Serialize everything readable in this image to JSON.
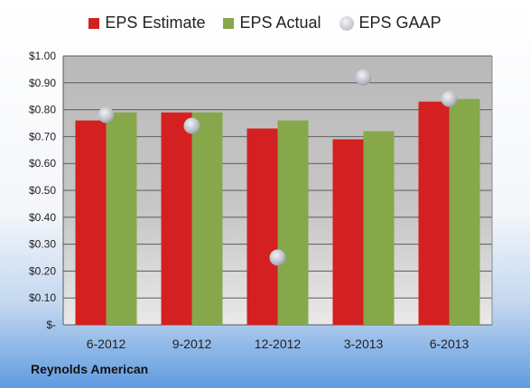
{
  "chart_data": {
    "type": "bar",
    "categories": [
      "6-2012",
      "9-2012",
      "12-2012",
      "3-2013",
      "6-2013"
    ],
    "series": [
      {
        "name": "EPS Estimate",
        "kind": "bar",
        "color": "#d42020",
        "values": [
          0.76,
          0.79,
          0.73,
          0.69,
          0.83
        ]
      },
      {
        "name": "EPS Actual",
        "kind": "bar",
        "color": "#86a84a",
        "values": [
          0.79,
          0.79,
          0.76,
          0.72,
          0.84
        ]
      },
      {
        "name": "EPS GAAP",
        "kind": "scatter",
        "color": "#c8ccd4",
        "values": [
          0.78,
          0.74,
          0.25,
          0.92,
          0.84
        ]
      }
    ],
    "ylim": [
      0,
      1.0
    ],
    "yticks": [
      {
        "value": 0,
        "label": "$-"
      },
      {
        "value": 0.1,
        "label": "$0.10"
      },
      {
        "value": 0.2,
        "label": "$0.20"
      },
      {
        "value": 0.3,
        "label": "$0.30"
      },
      {
        "value": 0.4,
        "label": "$0.40"
      },
      {
        "value": 0.5,
        "label": "$0.50"
      },
      {
        "value": 0.6,
        "label": "$0.60"
      },
      {
        "value": 0.7,
        "label": "$0.70"
      },
      {
        "value": 0.8,
        "label": "$0.80"
      },
      {
        "value": 0.9,
        "label": "$0.90"
      },
      {
        "value": 1.0,
        "label": "$1.00"
      }
    ],
    "grid": true,
    "legend": "top",
    "xlabel": "",
    "ylabel": ""
  },
  "company": "Reynolds American"
}
